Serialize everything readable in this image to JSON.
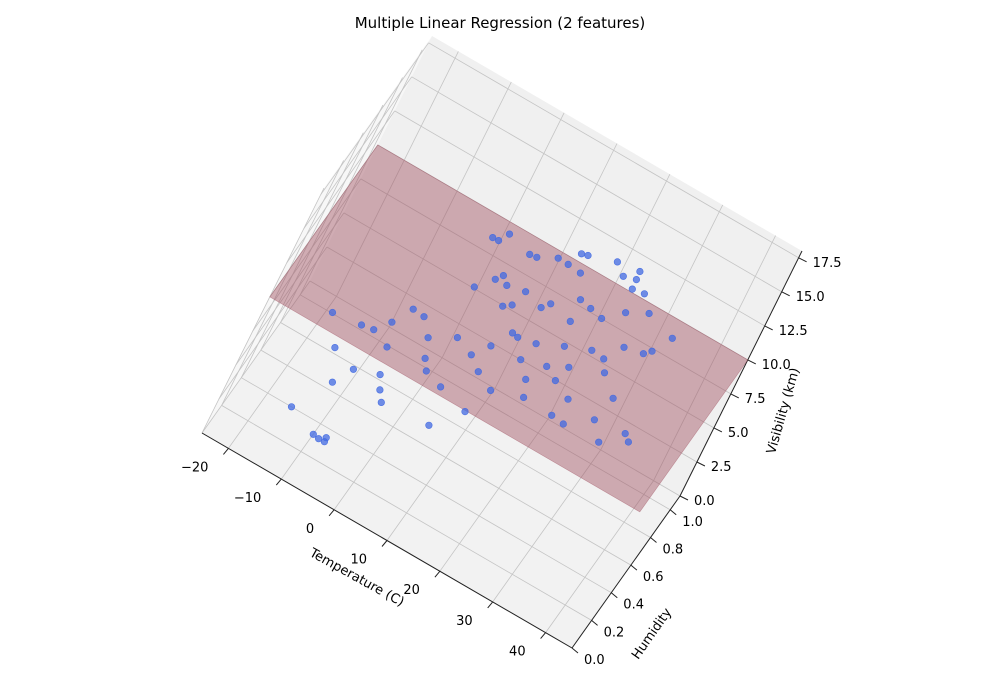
{
  "chart_data": {
    "type": "scatter",
    "title": "Multiple Linear Regression (2 features)",
    "xlabel": "Temperature (C)",
    "ylabel": "Humidity",
    "zlabel": "Visibility (km)",
    "xlim": [
      -25,
      45
    ],
    "ylim": [
      0,
      1.1
    ],
    "zlim": [
      0,
      18
    ],
    "x_ticks": [
      "−20",
      "−10",
      "0",
      "10",
      "20",
      "30",
      "40"
    ],
    "y_ticks": [
      "0.0",
      "0.2",
      "0.4",
      "0.6",
      "0.8",
      "1.0"
    ],
    "z_ticks": [
      "0.0",
      "2.5",
      "5.0",
      "7.5",
      "10.0",
      "12.5",
      "15.0",
      "17.5"
    ],
    "colors": {
      "points": "#4169e1",
      "plane": "#a0505f",
      "pane_left": "#f7f7f7",
      "pane_back": "#f0f0f0",
      "pane_floor": "#f2f2f2",
      "grid": "#c4c4c4"
    },
    "regression_plane": {
      "x_range": [
        -25,
        45
      ],
      "y_range": [
        0,
        1.1
      ],
      "intercept": 10.0,
      "coef_temperature": 0.0,
      "coef_humidity": 0.0
    },
    "series": [
      {
        "values": [
          {
            "x": 2,
            "y": 0.32,
            "z": 17.2
          },
          {
            "x": 3,
            "y": 0.34,
            "z": 17.0
          },
          {
            "x": 4,
            "y": 0.37,
            "z": 17.4
          },
          {
            "x": 15,
            "y": 0.6,
            "z": 16.1
          },
          {
            "x": 16,
            "y": 0.62,
            "z": 16.0
          },
          {
            "x": 14,
            "y": 0.56,
            "z": 15.5
          },
          {
            "x": 12,
            "y": 0.58,
            "z": 15.3
          },
          {
            "x": 8,
            "y": 0.47,
            "z": 15.8
          },
          {
            "x": 9,
            "y": 0.53,
            "z": 15.2
          },
          {
            "x": 20,
            "y": 0.8,
            "z": 14.6
          },
          {
            "x": 22,
            "y": 0.78,
            "z": 14.2
          },
          {
            "x": 24,
            "y": 0.82,
            "z": 14.0
          },
          {
            "x": 16,
            "y": 0.66,
            "z": 14.3
          },
          {
            "x": 6,
            "y": 0.4,
            "z": 14.5
          },
          {
            "x": 3,
            "y": 0.3,
            "z": 14.0
          },
          {
            "x": 5,
            "y": 0.42,
            "z": 13.8
          },
          {
            "x": 7,
            "y": 0.45,
            "z": 13.5
          },
          {
            "x": 10,
            "y": 0.5,
            "z": 13.2
          },
          {
            "x": 20,
            "y": 0.68,
            "z": 12.4
          },
          {
            "x": 24,
            "y": 0.84,
            "z": 13.1
          },
          {
            "x": 26,
            "y": 0.87,
            "z": 12.9
          },
          {
            "x": 25,
            "y": 0.78,
            "z": 12.2
          },
          {
            "x": 8,
            "y": 0.43,
            "z": 12.4
          },
          {
            "x": -2,
            "y": 0.25,
            "z": 11.2
          },
          {
            "x": -6,
            "y": 0.18,
            "z": 10.6
          },
          {
            "x": -4,
            "y": 0.22,
            "z": 11.6
          },
          {
            "x": 9,
            "y": 0.5,
            "z": 12.0
          },
          {
            "x": 13,
            "y": 0.6,
            "z": 11.7
          },
          {
            "x": 14,
            "y": 0.63,
            "z": 11.9
          },
          {
            "x": 18,
            "y": 0.67,
            "z": 11.1
          },
          {
            "x": 22,
            "y": 0.76,
            "z": 11.3
          },
          {
            "x": 28,
            "y": 0.9,
            "z": 11.6
          },
          {
            "x": 33,
            "y": 0.95,
            "z": 10.4
          },
          {
            "x": -15,
            "y": 0.08,
            "z": 10.3
          },
          {
            "x": -10,
            "y": 0.12,
            "z": 10.1
          },
          {
            "x": -8,
            "y": 0.15,
            "z": 9.9
          },
          {
            "x": 0,
            "y": 0.28,
            "z": 9.8
          },
          {
            "x": 4,
            "y": 0.35,
            "z": 10.0
          },
          {
            "x": 11,
            "y": 0.52,
            "z": 10.2
          },
          {
            "x": 12,
            "y": 0.54,
            "z": 9.9
          },
          {
            "x": 15,
            "y": 0.58,
            "z": 9.7
          },
          {
            "x": 19,
            "y": 0.66,
            "z": 9.6
          },
          {
            "x": 23,
            "y": 0.73,
            "z": 9.5
          },
          {
            "x": 27,
            "y": 0.85,
            "z": 9.4
          },
          {
            "x": -12,
            "y": 0.06,
            "z": 8.6
          },
          {
            "x": -5,
            "y": 0.2,
            "z": 8.8
          },
          {
            "x": 1,
            "y": 0.3,
            "z": 8.3
          },
          {
            "x": 7,
            "y": 0.42,
            "z": 8.7
          },
          {
            "x": 14,
            "y": 0.56,
            "z": 8.5
          },
          {
            "x": 18,
            "y": 0.63,
            "z": 8.2
          },
          {
            "x": 21,
            "y": 0.7,
            "z": 8.1
          },
          {
            "x": 25,
            "y": 0.82,
            "z": 8.4
          },
          {
            "x": 30,
            "y": 0.92,
            "z": 8.9
          },
          {
            "x": 31,
            "y": 0.94,
            "z": 9.1
          },
          {
            "x": -8,
            "y": 0.13,
            "z": 7.2
          },
          {
            "x": -4,
            "y": 0.2,
            "z": 7.0
          },
          {
            "x": 2,
            "y": 0.32,
            "z": 7.4
          },
          {
            "x": 9,
            "y": 0.48,
            "z": 7.3
          },
          {
            "x": 16,
            "y": 0.6,
            "z": 7.1
          },
          {
            "x": 20,
            "y": 0.7,
            "z": 6.9
          },
          {
            "x": 26,
            "y": 0.85,
            "z": 7.3
          },
          {
            "x": -10,
            "y": 0.1,
            "z": 6.1
          },
          {
            "x": -3,
            "y": 0.22,
            "z": 5.9
          },
          {
            "x": 5,
            "y": 0.38,
            "z": 6.3
          },
          {
            "x": 12,
            "y": 0.52,
            "z": 6.2
          },
          {
            "x": 17,
            "y": 0.6,
            "z": 6.0
          },
          {
            "x": 23,
            "y": 0.75,
            "z": 5.7
          },
          {
            "x": 29,
            "y": 0.88,
            "z": 5.8
          },
          {
            "x": -2,
            "y": 0.25,
            "z": 4.9
          },
          {
            "x": 10,
            "y": 0.47,
            "z": 4.7
          },
          {
            "x": 22,
            "y": 0.7,
            "z": 4.8
          },
          {
            "x": 28,
            "y": 0.84,
            "z": 4.4
          },
          {
            "x": -14,
            "y": 0.05,
            "z": 3.9
          },
          {
            "x": 6,
            "y": 0.4,
            "z": 3.5
          },
          {
            "x": 24,
            "y": 0.78,
            "z": 3.8
          },
          {
            "x": 33,
            "y": 0.96,
            "z": 3.3
          },
          {
            "x": -9,
            "y": 0.1,
            "z": 2.5
          },
          {
            "x": -8,
            "y": 0.12,
            "z": 2.2
          },
          {
            "x": -7,
            "y": 0.14,
            "z": 2.0
          },
          {
            "x": -7,
            "y": 0.13,
            "z": 2.4
          },
          {
            "x": 30,
            "y": 0.9,
            "z": 2.6
          },
          {
            "x": 34,
            "y": 0.98,
            "z": 2.7
          },
          {
            "x": 9,
            "y": 0.47,
            "z": 9.3
          },
          {
            "x": 18,
            "y": 0.65,
            "z": 12.9
          },
          {
            "x": 24,
            "y": 0.8,
            "z": 14.8
          }
        ]
      }
    ]
  }
}
